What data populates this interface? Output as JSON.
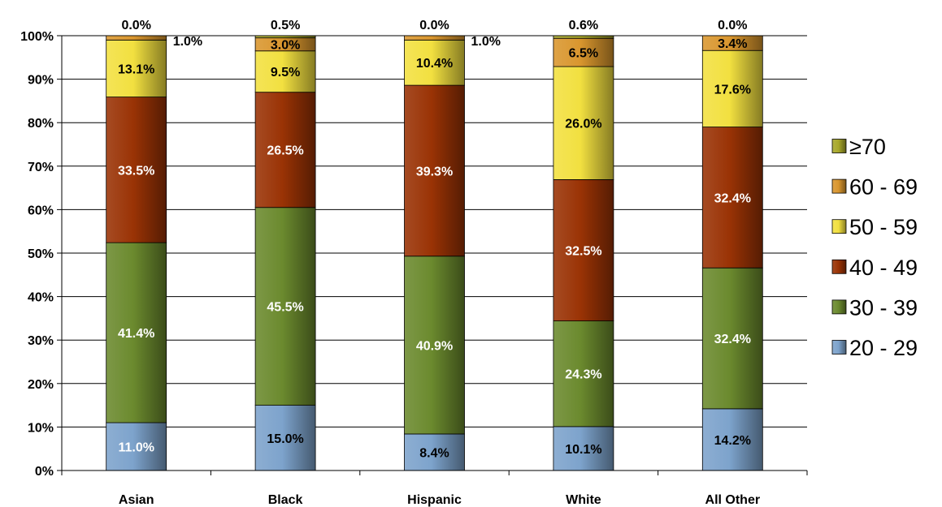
{
  "chart_data": {
    "type": "bar",
    "stacked": true,
    "percent_stacked": true,
    "categories": [
      "Asian",
      "Black",
      "Hispanic",
      "White",
      "All Other"
    ],
    "y_ticks": [
      "0%",
      "10%",
      "20%",
      "30%",
      "40%",
      "50%",
      "60%",
      "70%",
      "80%",
      "90%",
      "100%"
    ],
    "ylim": [
      0,
      100
    ],
    "grid": true,
    "legend_position": "right",
    "series": [
      {
        "name": "20 - 29",
        "color": "#7da3cc",
        "values": [
          11.0,
          15.0,
          8.4,
          10.1,
          14.2
        ],
        "labels": [
          "11.0%",
          "15.0%",
          "8.4%",
          "10.1%",
          "14.2%"
        ]
      },
      {
        "name": "30 - 39",
        "color": "#6b8a2e",
        "values": [
          41.4,
          45.5,
          40.9,
          24.3,
          32.4
        ],
        "labels": [
          "41.4%",
          "45.5%",
          "40.9%",
          "24.3%",
          "32.4%"
        ]
      },
      {
        "name": "40 - 49",
        "color": "#9a3305",
        "values": [
          33.5,
          26.5,
          39.3,
          32.5,
          32.4
        ],
        "labels": [
          "33.5%",
          "26.5%",
          "39.3%",
          "32.5%",
          "32.4%"
        ]
      },
      {
        "name": "50 - 59",
        "color": "#f2e040",
        "values": [
          13.1,
          9.5,
          10.4,
          26.0,
          17.6
        ],
        "labels": [
          "13.1%",
          "9.5%",
          "10.4%",
          "26.0%",
          "17.6%"
        ]
      },
      {
        "name": "60 - 69",
        "color": "#d9962e",
        "values": [
          1.0,
          3.0,
          1.0,
          6.5,
          3.4
        ],
        "labels": [
          "1.0%",
          "3.0%",
          "1.0%",
          "6.5%",
          "3.4%"
        ]
      },
      {
        "name": "≥70",
        "color": "#a8a82a",
        "values": [
          0.0,
          0.5,
          0.0,
          0.6,
          0.0
        ],
        "labels": [
          "0.0%",
          "0.5%",
          "0.0%",
          "0.6%",
          "0.0%"
        ]
      }
    ]
  }
}
